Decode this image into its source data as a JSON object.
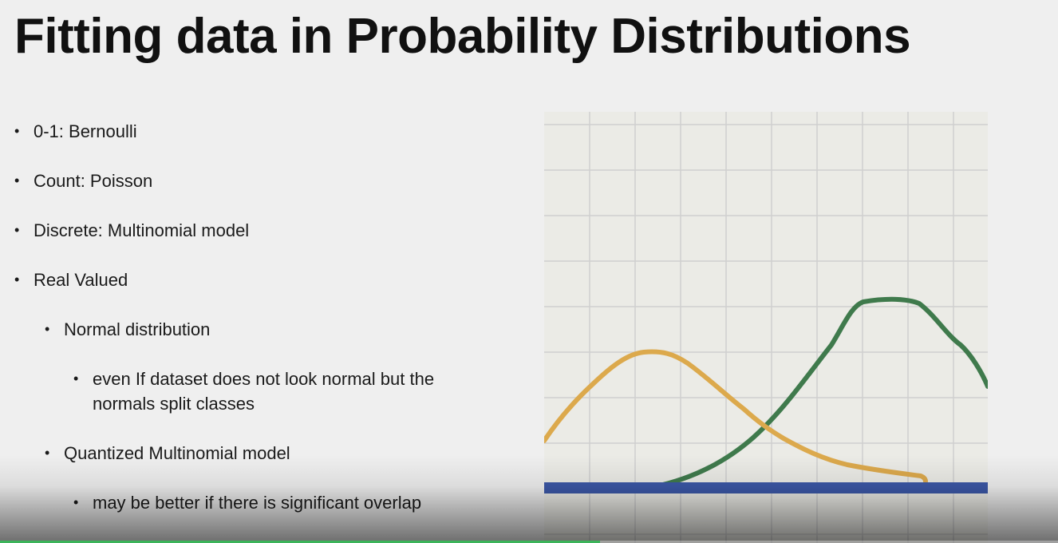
{
  "slide": {
    "title": "Fitting data in Probability Distributions",
    "bullets": [
      {
        "level": 1,
        "text": "0-1: Bernoulli"
      },
      {
        "level": 1,
        "text": "Count: Poisson"
      },
      {
        "level": 1,
        "text": "Discrete: Multinomial model"
      },
      {
        "level": 1,
        "text": "Real Valued"
      },
      {
        "level": 2,
        "text": "Normal distribution"
      },
      {
        "level": 3,
        "text": "even If dataset does not look normal but the normals split classes"
      },
      {
        "level": 2,
        "text": "Quantized Multinomial model"
      },
      {
        "level": 3,
        "text": "may be better if there is significant overlap"
      }
    ]
  },
  "figure": {
    "colors": {
      "grid": "#cfcfcf",
      "background": "#ebebe6",
      "baseline": "#3b57a6",
      "curve_a": "#dca94c",
      "curve_b": "#3f7a4c"
    },
    "curves": [
      "orange-bell-curve",
      "green-bell-curve"
    ]
  },
  "video": {
    "progress": 0.567
  }
}
